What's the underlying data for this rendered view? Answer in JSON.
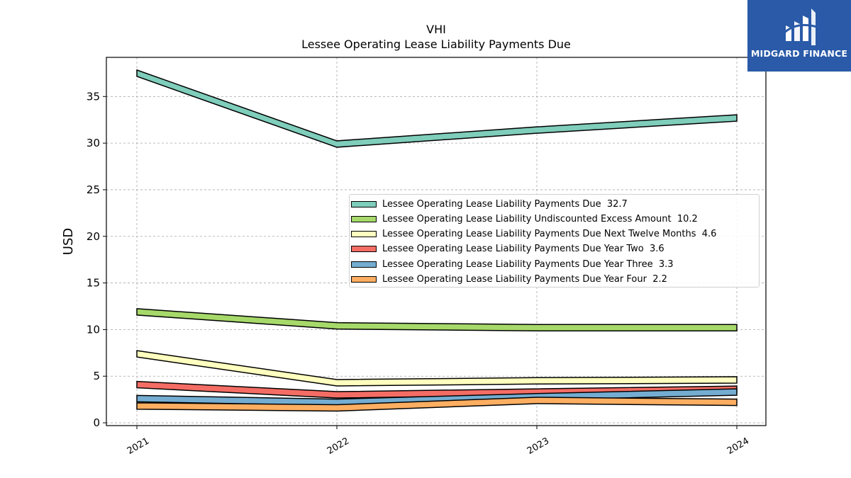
{
  "chart_data": {
    "type": "line",
    "title": "VHI",
    "subtitle": "Lessee Operating Lease Liability Payments Due",
    "xlabel": "",
    "ylabel": "USD",
    "categories": [
      "2021",
      "2022",
      "2023",
      "2024"
    ],
    "ylim": [
      -0.3,
      39.2
    ],
    "yticks": [
      0,
      5,
      10,
      15,
      20,
      25,
      30,
      35
    ],
    "grid": true,
    "legend_position": "center-right",
    "series": [
      {
        "name": "Lessee Operating Lease Liability Payments Due",
        "legend_label": "Lessee Operating Lease Liability Payments Due  32.7",
        "color": "#7fcdbb",
        "values": [
          37.5,
          29.9,
          31.4,
          32.7
        ]
      },
      {
        "name": "Lessee Operating Lease Liability Undiscounted Excess Amount",
        "legend_label": "Lessee Operating Lease Liability Undiscounted Excess Amount  10.2",
        "color": "#a6d96a",
        "values": [
          11.9,
          10.4,
          10.2,
          10.2
        ]
      },
      {
        "name": "Lessee Operating Lease Liability Payments Due Next Twelve Months",
        "legend_label": "Lessee Operating Lease Liability Payments Due Next Twelve Months  4.6",
        "color": "#ffffbf",
        "values": [
          7.4,
          4.3,
          4.5,
          4.6
        ]
      },
      {
        "name": "Lessee Operating Lease Liability Payments Due Year Two",
        "legend_label": "Lessee Operating Lease Liability Payments Due Year Two  3.6",
        "color": "#f46d65",
        "values": [
          4.1,
          3.0,
          3.3,
          3.6
        ]
      },
      {
        "name": "Lessee Operating Lease Liability Payments Due Year Three",
        "legend_label": "Lessee Operating Lease Liability Payments Due Year Three  3.3",
        "color": "#74add1",
        "values": [
          2.6,
          2.2,
          2.8,
          3.3
        ]
      },
      {
        "name": "Lessee Operating Lease Liability Payments Due Year Four",
        "legend_label": "Lessee Operating Lease Liability Payments Due Year Four  2.2",
        "color": "#fdae61",
        "values": [
          1.8,
          1.6,
          2.4,
          2.2
        ]
      }
    ]
  },
  "logo": {
    "text": "MIDGARD FINANCE",
    "icon": "midgard-logo-icon",
    "background": "#2a5aa8"
  }
}
